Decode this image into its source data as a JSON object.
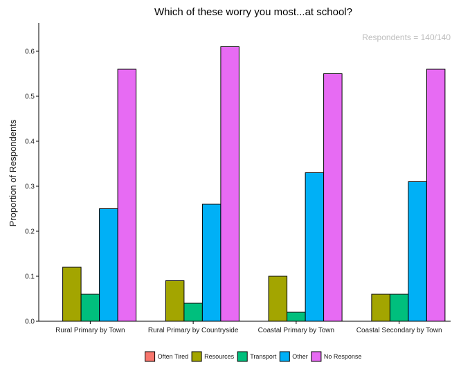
{
  "chart_data": {
    "type": "bar",
    "title": "Which of these worry you most...at school?",
    "annotation": "Respondents = 140/140",
    "xlabel": "",
    "ylabel": "Proportion of Respondents",
    "ylim": [
      0,
      0.65
    ],
    "yticks": [
      0.0,
      0.1,
      0.2,
      0.3,
      0.4,
      0.5,
      0.6
    ],
    "ytick_labels": [
      "0.0",
      "0.1",
      "0.2",
      "0.3",
      "0.4",
      "0.5",
      "0.6"
    ],
    "categories": [
      "Rural Primary by Town",
      "Rural Primary by Countryside",
      "Coastal Primary by Town",
      "Coastal Secondary by Town"
    ],
    "series": [
      {
        "name": "Often Tired",
        "color": "#f8766d",
        "values": [
          0,
          0,
          0,
          0
        ]
      },
      {
        "name": "Resources",
        "color": "#a3a500",
        "values": [
          0.12,
          0.09,
          0.1,
          0.06
        ]
      },
      {
        "name": "Transport",
        "color": "#00bf7d",
        "values": [
          0.06,
          0.04,
          0.02,
          0.06
        ]
      },
      {
        "name": "Other",
        "color": "#00b0f6",
        "values": [
          0.25,
          0.26,
          0.33,
          0.31
        ]
      },
      {
        "name": "No Response",
        "color": "#e76bf3",
        "values": [
          0.56,
          0.61,
          0.55,
          0.56
        ]
      }
    ],
    "grid": false,
    "legend_position": "bottom"
  }
}
